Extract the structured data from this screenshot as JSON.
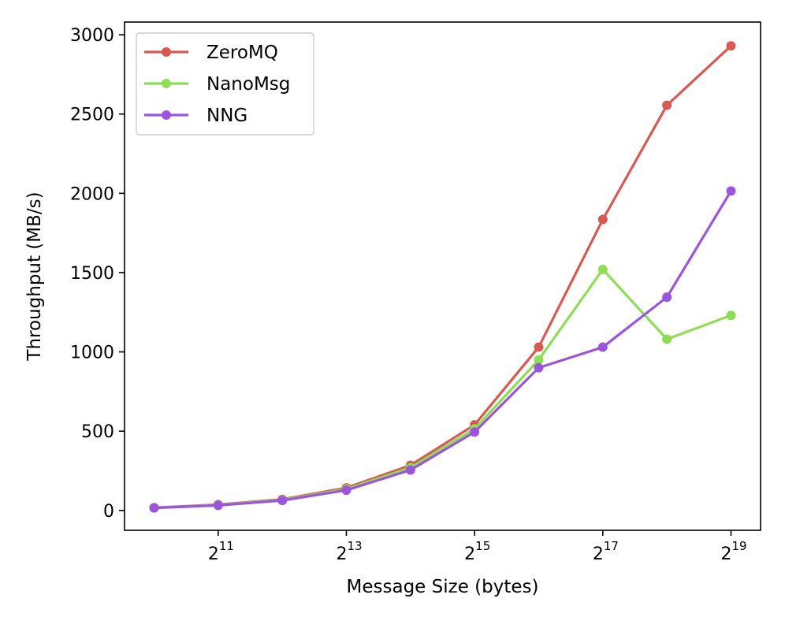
{
  "chart_data": {
    "type": "line",
    "xlabel": "Message Size (bytes)",
    "ylabel": "Throughput (MB/s)",
    "x_scale": "log2",
    "x": [
      1024,
      2048,
      4096,
      8192,
      16384,
      32768,
      65536,
      131072,
      262144,
      524288
    ],
    "xlim": [
      1024,
      524288
    ],
    "x_ticks": [
      {
        "value": 2048,
        "base": "2",
        "exp": "11"
      },
      {
        "value": 8192,
        "base": "2",
        "exp": "13"
      },
      {
        "value": 32768,
        "base": "2",
        "exp": "15"
      },
      {
        "value": 131072,
        "base": "2",
        "exp": "17"
      },
      {
        "value": 524288,
        "base": "2",
        "exp": "19"
      }
    ],
    "ylim": [
      -125,
      3080
    ],
    "y_ticks": [
      0,
      500,
      1000,
      1500,
      2000,
      2500,
      3000
    ],
    "grid": false,
    "legend_position": "top-left",
    "series": [
      {
        "name": "ZeroMQ",
        "color": "#d65a52",
        "values": [
          18,
          37,
          70,
          143,
          285,
          540,
          1030,
          1835,
          2555,
          2930
        ]
      },
      {
        "name": "NanoMsg",
        "color": "#8fdc55",
        "values": [
          17,
          34,
          66,
          135,
          270,
          515,
          950,
          1520,
          1080,
          1230
        ]
      },
      {
        "name": "NNG",
        "color": "#9b55dc",
        "values": [
          16,
          32,
          63,
          128,
          255,
          495,
          900,
          1030,
          1345,
          2015
        ]
      }
    ]
  }
}
